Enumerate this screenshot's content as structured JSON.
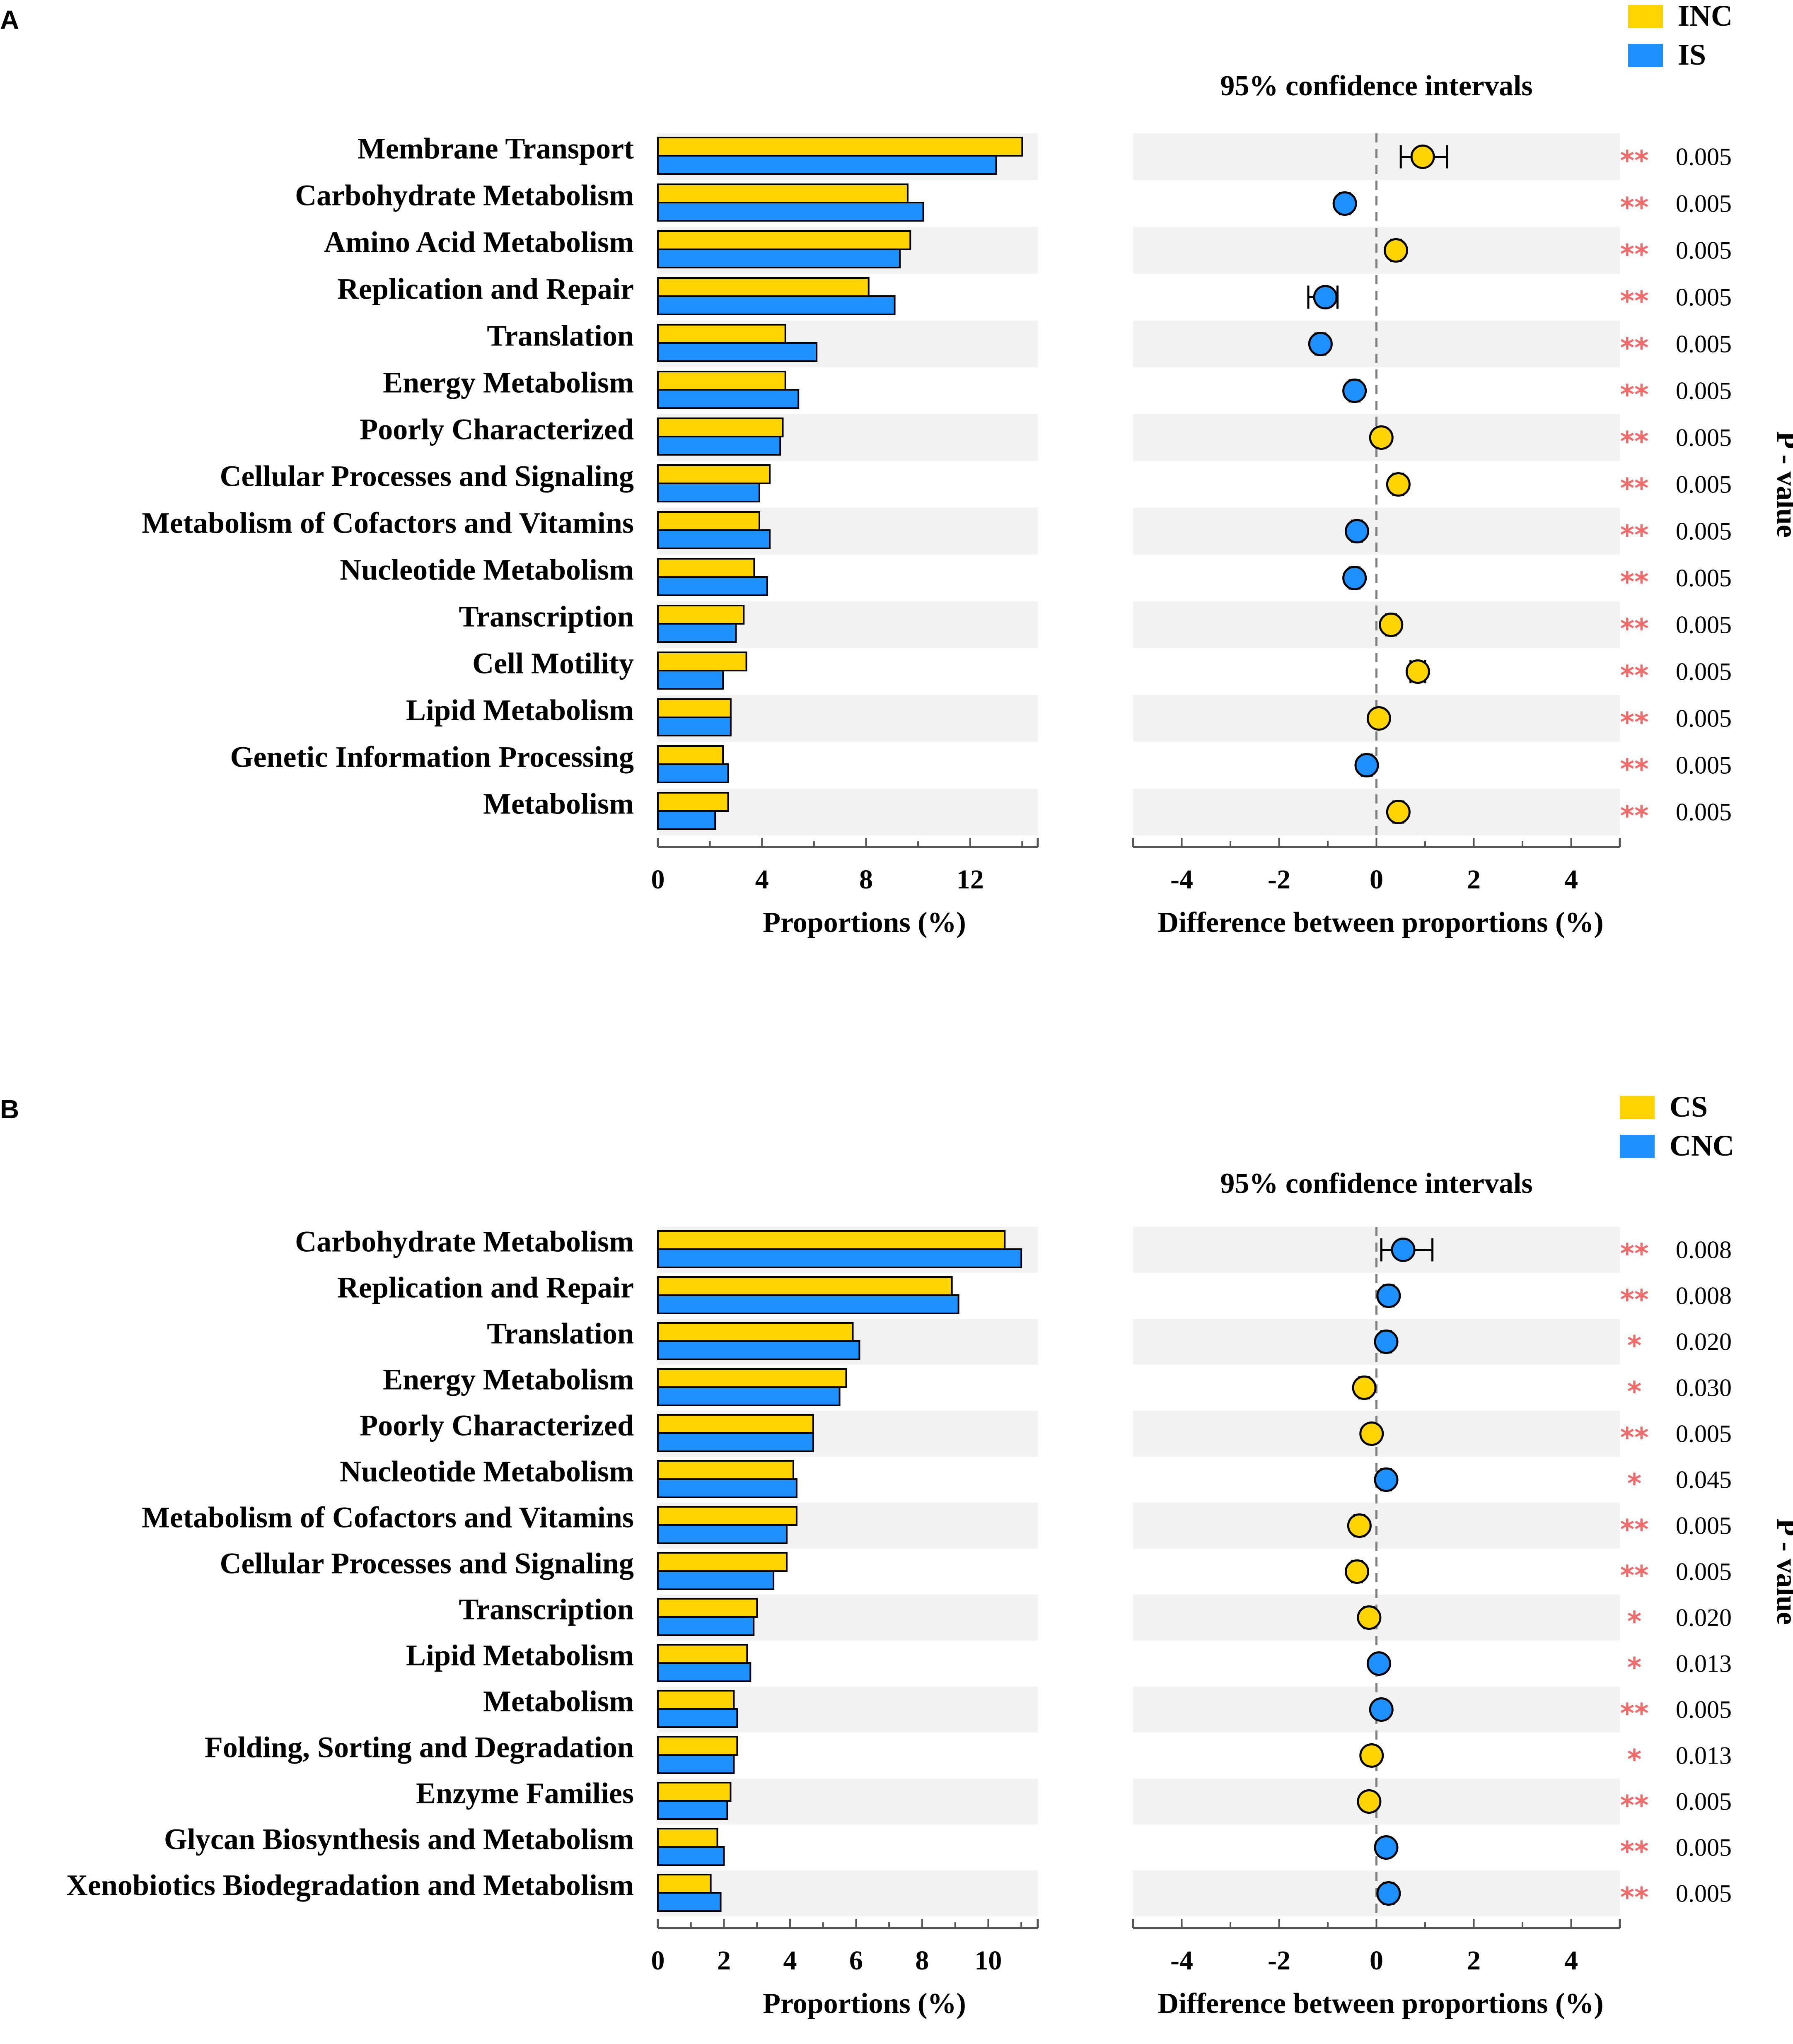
{
  "colors": {
    "group1": "#FFD400",
    "group2": "#1E90FF",
    "stripe": "#F2F2F2",
    "star": "#F26B6B",
    "axis": "#555555",
    "zero_line": "#7F7F7F"
  },
  "chart_data": [
    {
      "type": "extended_error_bar",
      "panel_label": "A",
      "legend": [
        "INC",
        "IS"
      ],
      "ci_title": "95% confidence intervals",
      "xlabel_left": "Proportions (%)",
      "xlabel_right": "Difference between proportions (%)",
      "side_label": "P - value",
      "left_xlim": [
        0,
        14.6
      ],
      "left_ticks": [
        0,
        4,
        8,
        12
      ],
      "left_tick_labels": [
        "0",
        "4",
        "8",
        "12"
      ],
      "right_xlim": [
        -5,
        5
      ],
      "right_ticks": [
        -4,
        -2,
        0,
        2,
        4
      ],
      "right_tick_labels": [
        "-4",
        "-2",
        "0",
        "2",
        "4"
      ],
      "categories": [
        "Membrane Transport",
        "Carbohydrate Metabolism",
        "Amino Acid Metabolism",
        "Replication and Repair",
        "Translation",
        "Energy Metabolism",
        "Poorly Characterized",
        "Cellular Processes and Signaling",
        "Metabolism of Cofactors and Vitamins",
        "Nucleotide Metabolism",
        "Transcription",
        "Cell Motility",
        "Lipid Metabolism",
        "Genetic Information Processing",
        "Metabolism"
      ],
      "series": [
        {
          "name": "INC",
          "values": [
            14.0,
            9.6,
            9.7,
            8.1,
            4.9,
            4.9,
            4.8,
            4.3,
            3.9,
            3.7,
            3.3,
            3.4,
            2.8,
            2.5,
            2.7
          ]
        },
        {
          "name": "IS",
          "values": [
            13.0,
            10.2,
            9.3,
            9.1,
            6.1,
            5.4,
            4.7,
            3.9,
            4.3,
            4.2,
            3.0,
            2.5,
            2.8,
            2.7,
            2.2
          ]
        }
      ],
      "diff": [
        0.95,
        -0.65,
        0.4,
        -1.05,
        -1.15,
        -0.45,
        0.1,
        0.45,
        -0.4,
        -0.45,
        0.3,
        0.85,
        0.05,
        -0.2,
        0.45
      ],
      "ci_low": [
        0.5,
        -0.75,
        0.3,
        -1.4,
        -1.25,
        -0.55,
        0.02,
        0.35,
        -0.5,
        -0.55,
        0.2,
        0.7,
        -0.02,
        -0.3,
        0.35
      ],
      "ci_high": [
        1.45,
        -0.55,
        0.5,
        -0.8,
        -1.05,
        -0.35,
        0.18,
        0.55,
        -0.3,
        -0.35,
        0.4,
        1.0,
        0.12,
        -0.1,
        0.55
      ],
      "diff_group": [
        "INC",
        "IS",
        "INC",
        "IS",
        "IS",
        "IS",
        "INC",
        "INC",
        "IS",
        "IS",
        "INC",
        "INC",
        "INC",
        "IS",
        "INC"
      ],
      "stars": [
        "**",
        "**",
        "**",
        "**",
        "**",
        "**",
        "**",
        "**",
        "**",
        "**",
        "**",
        "**",
        "**",
        "**",
        "**"
      ],
      "p_values": [
        "0.005",
        "0.005",
        "0.005",
        "0.005",
        "0.005",
        "0.005",
        "0.005",
        "0.005",
        "0.005",
        "0.005",
        "0.005",
        "0.005",
        "0.005",
        "0.005",
        "0.005"
      ]
    },
    {
      "type": "extended_error_bar",
      "panel_label": "B",
      "legend": [
        "CS",
        "CNC"
      ],
      "ci_title": "95% confidence intervals",
      "xlabel_left": "Proportions (%)",
      "xlabel_right": "Difference between proportions (%)",
      "side_label": "P - value",
      "left_xlim": [
        0,
        11.5
      ],
      "left_ticks": [
        0,
        2,
        4,
        6,
        8,
        10
      ],
      "left_tick_labels": [
        "0",
        "2",
        "4",
        "6",
        "8",
        "10"
      ],
      "right_xlim": [
        -5,
        5
      ],
      "right_ticks": [
        -4,
        -2,
        0,
        2,
        4
      ],
      "right_tick_labels": [
        "-4",
        "-2",
        "0",
        "2",
        "4"
      ],
      "categories": [
        "Carbohydrate Metabolism",
        "Replication and Repair",
        "Translation",
        "Energy Metabolism",
        "Poorly Characterized",
        "Nucleotide Metabolism",
        "Metabolism of Cofactors and Vitamins",
        "Cellular Processes and Signaling",
        "Transcription",
        "Lipid Metabolism",
        "Metabolism",
        "Folding, Sorting and Degradation",
        "Enzyme Families",
        "Glycan Biosynthesis and Metabolism",
        "Xenobiotics Biodegradation and Metabolism"
      ],
      "series": [
        {
          "name": "CS",
          "values": [
            10.5,
            8.9,
            5.9,
            5.7,
            4.7,
            4.1,
            4.2,
            3.9,
            3.0,
            2.7,
            2.3,
            2.4,
            2.2,
            1.8,
            1.6
          ]
        },
        {
          "name": "CNC",
          "values": [
            11.0,
            9.1,
            6.1,
            5.5,
            4.7,
            4.2,
            3.9,
            3.5,
            2.9,
            2.8,
            2.4,
            2.3,
            2.1,
            2.0,
            1.9
          ]
        }
      ],
      "diff": [
        0.55,
        0.25,
        0.2,
        -0.25,
        -0.1,
        0.2,
        -0.35,
        -0.4,
        -0.15,
        0.05,
        0.1,
        -0.1,
        -0.15,
        0.2,
        0.25
      ],
      "ci_low": [
        0.1,
        0.15,
        0.1,
        -0.35,
        -0.17,
        0.1,
        -0.45,
        -0.5,
        -0.25,
        -0.02,
        0.02,
        -0.17,
        -0.22,
        0.12,
        0.15
      ],
      "ci_high": [
        1.15,
        0.35,
        0.3,
        -0.15,
        -0.03,
        0.3,
        -0.25,
        -0.3,
        -0.05,
        0.12,
        0.18,
        -0.03,
        -0.08,
        0.28,
        0.35
      ],
      "diff_group": [
        "CNC",
        "CNC",
        "CNC",
        "CS",
        "CS",
        "CNC",
        "CS",
        "CS",
        "CS",
        "CNC",
        "CNC",
        "CS",
        "CS",
        "CNC",
        "CNC"
      ],
      "stars": [
        "**",
        "**",
        "*",
        "*",
        "**",
        "*",
        "**",
        "**",
        "*",
        "*",
        "**",
        "*",
        "**",
        "**",
        "**"
      ],
      "p_values": [
        "0.008",
        "0.008",
        "0.020",
        "0.030",
        "0.005",
        "0.045",
        "0.005",
        "0.005",
        "0.020",
        "0.013",
        "0.005",
        "0.013",
        "0.005",
        "0.005",
        "0.005"
      ]
    }
  ]
}
